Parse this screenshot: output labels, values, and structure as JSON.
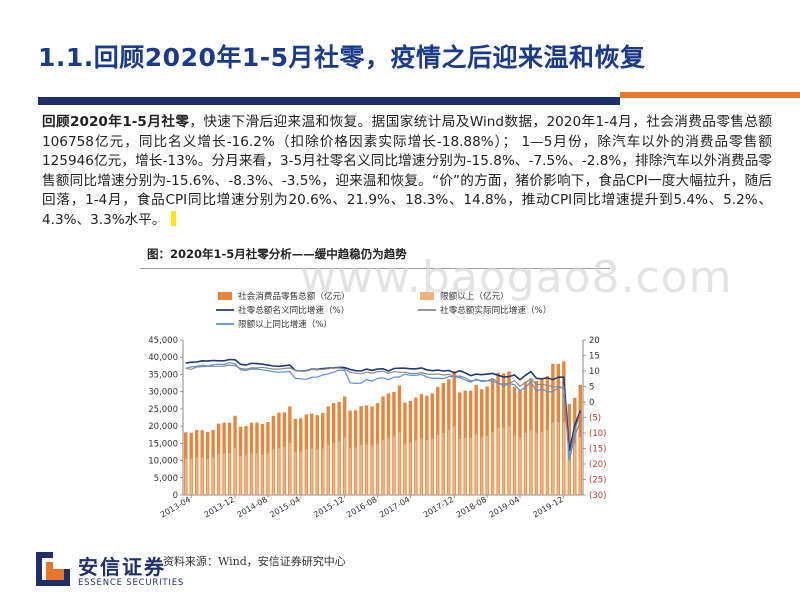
{
  "header": {
    "title": "1.1.回顾2020年1-5月社零，疫情之后迎来温和恢复"
  },
  "summary": {
    "lead": "回顾2020年1-5月社零",
    "body": "，快速下滑后迎来温和恢复。据国家统计局及Wind数据，2020年1-4月，社会消费品零售总额106758亿元，同比名义增长-16.2%（扣除价格因素实际增长-18.88%）； 1—5月份，除汽车以外的消费品零售额125946亿元，增长-13%。分月来看，3-5月社零名义同比增速分别为-15.8%、-7.5%、-2.8%，排除汽车以外消费品零售额同比增速分别为-15.6%、-8.3%、-3.5%，迎来温和恢复。“价”的方面，猪价影响下，食品CPI一度大幅拉升，随后回落，1-4月，食品CPI同比增速分别为20.6%、21.9%、18.3%、14.8%，推动CPI同比增速提升到5.4%、5.2%、4.3%、3.3%水平。"
  },
  "figure": {
    "title": "图：2020年1-5月社零分析——缓中趋稳仍为趋势",
    "source": "资料来源：Wind，安信证券研究中心",
    "watermark": "www.baogao8.com"
  },
  "brand": {
    "name_cn": "安信证券",
    "name_en": "ESSENCE SECURITIES",
    "navy": "#1f2f6b",
    "orange": "#e9762a"
  },
  "chart_data": {
    "type": "bar+line",
    "legend": {
      "placement": "top",
      "entries": [
        "社会消费品零售总额（亿元）",
        "限额以上（亿元）",
        "社零总额名义同比增速（%）",
        "社零总额实际同比增速（%）",
        "限额以上同比增速（%）"
      ]
    },
    "x_tick_labels": [
      "2013-04",
      "2013-12",
      "2014-08",
      "2015-04",
      "2015-12",
      "2016-08",
      "2017-04",
      "2017-12",
      "2018-08",
      "2019-04",
      "2019-12"
    ],
    "y_left": {
      "min": 0,
      "max": 45000,
      "ticks": [
        "0",
        "5,000",
        "10,000",
        "15,000",
        "20,000",
        "25,000",
        "30,000",
        "35,000",
        "40,000",
        "45,000"
      ]
    },
    "y_right": {
      "min": -30,
      "max": 20,
      "ticks": [
        "20",
        "15",
        "10",
        "5",
        "0",
        "(5)",
        "(10)",
        "(15)",
        "(20)",
        "(25)",
        "(30)"
      ]
    },
    "months": [
      "2013-03",
      "2013-04",
      "2013-05",
      "2013-06",
      "2013-07",
      "2013-08",
      "2013-09",
      "2013-10",
      "2013-11",
      "2013-12",
      "2014-03",
      "2014-04",
      "2014-05",
      "2014-06",
      "2014-07",
      "2014-08",
      "2014-09",
      "2014-10",
      "2014-11",
      "2014-12",
      "2015-03",
      "2015-04",
      "2015-05",
      "2015-06",
      "2015-07",
      "2015-08",
      "2015-09",
      "2015-10",
      "2015-11",
      "2015-12",
      "2016-03",
      "2016-04",
      "2016-05",
      "2016-06",
      "2016-07",
      "2016-08",
      "2016-09",
      "2016-10",
      "2016-11",
      "2016-12",
      "2017-03",
      "2017-04",
      "2017-05",
      "2017-06",
      "2017-07",
      "2017-08",
      "2017-09",
      "2017-10",
      "2017-11",
      "2017-12",
      "2018-03",
      "2018-04",
      "2018-05",
      "2018-06",
      "2018-07",
      "2018-08",
      "2018-09",
      "2018-10",
      "2018-11",
      "2018-12",
      "2019-03",
      "2019-04",
      "2019-05",
      "2019-06",
      "2019-07",
      "2019-08",
      "2019-09",
      "2019-10",
      "2019-11",
      "2019-12",
      "2020-03",
      "2020-04",
      "2020-05"
    ],
    "series": [
      {
        "name": "社会消费品零售总额（亿元）",
        "kind": "bar",
        "color": "#e9853a",
        "values": [
          18200,
          18100,
          18900,
          18800,
          18300,
          18900,
          20700,
          21000,
          21000,
          23000,
          19800,
          20000,
          21000,
          21000,
          20600,
          21200,
          23000,
          23900,
          24000,
          25700,
          22100,
          22300,
          23400,
          23600,
          23200,
          23800,
          25700,
          26700,
          27000,
          28600,
          24500,
          24600,
          25800,
          26000,
          25700,
          26700,
          28600,
          29500,
          29900,
          31800,
          26800,
          27300,
          28300,
          29300,
          28800,
          29500,
          31400,
          32500,
          33600,
          35900,
          29800,
          30300,
          30300,
          32000,
          30700,
          31500,
          33600,
          35500,
          35300,
          35900,
          31400,
          30600,
          32900,
          33900,
          33100,
          33900,
          34500,
          38100,
          38100,
          38800,
          26400,
          28200,
          31970
        ]
      },
      {
        "name": "限额以上（亿元）",
        "kind": "bar",
        "color": "#f2b27b",
        "values": [
          10500,
          10400,
          10900,
          10900,
          10500,
          10900,
          11900,
          12100,
          12200,
          13700,
          11300,
          11500,
          12000,
          12100,
          11800,
          12100,
          13300,
          13600,
          14000,
          15100,
          12500,
          12700,
          13300,
          13500,
          13200,
          13500,
          14600,
          15200,
          15600,
          16700,
          13700,
          13800,
          14500,
          14700,
          14300,
          14900,
          16000,
          16600,
          17000,
          18200,
          14900,
          15200,
          15800,
          16400,
          15900,
          16300,
          17500,
          18000,
          18900,
          20000,
          16300,
          16600,
          16600,
          17600,
          16700,
          17100,
          18300,
          19600,
          19500,
          19900,
          17300,
          16700,
          18100,
          18700,
          18000,
          18300,
          18800,
          21100,
          21100,
          21200,
          13500,
          14900,
          16800
        ]
      },
      {
        "name": "社零总额名义同比增速（%）",
        "kind": "line",
        "axis": "right",
        "color": "#1f3a7a",
        "values": [
          12.6,
          12.8,
          12.9,
          13.3,
          13.2,
          13.4,
          13.3,
          13.3,
          13.7,
          13.6,
          12.2,
          11.9,
          12.5,
          12.4,
          12.2,
          11.9,
          11.6,
          11.5,
          11.7,
          11.9,
          10.2,
          10.0,
          10.1,
          10.6,
          10.5,
          10.8,
          10.9,
          11.0,
          11.2,
          11.1,
          10.5,
          10.1,
          10.0,
          10.6,
          10.2,
          10.6,
          10.7,
          10.0,
          10.8,
          10.9,
          10.9,
          10.7,
          10.7,
          11.0,
          10.4,
          10.1,
          10.3,
          10.0,
          10.2,
          9.4,
          10.1,
          9.4,
          8.5,
          9.0,
          8.8,
          9.0,
          9.2,
          8.6,
          8.1,
          8.2,
          8.7,
          7.2,
          8.6,
          9.8,
          7.6,
          7.5,
          7.8,
          7.2,
          8.0,
          8.0,
          -15.8,
          -7.5,
          -2.8
        ]
      },
      {
        "name": "社零总额实际同比增速（%）",
        "kind": "line",
        "axis": "right",
        "color": "#8a8a8a",
        "values": [
          10.9,
          10.5,
          11.3,
          11.4,
          11.5,
          11.5,
          11.5,
          11.6,
          11.9,
          11.7,
          10.8,
          10.6,
          11.0,
          11.0,
          11.2,
          10.9,
          10.6,
          10.6,
          10.8,
          11.0,
          10.2,
          10.0,
          10.0,
          10.5,
          10.4,
          10.5,
          10.7,
          10.9,
          11.0,
          10.6,
          9.6,
          9.3,
          9.1,
          9.6,
          9.3,
          9.8,
          9.9,
          9.3,
          9.8,
          9.6,
          9.6,
          9.2,
          9.2,
          9.5,
          9.0,
          8.9,
          9.1,
          8.7,
          8.9,
          8.3,
          8.4,
          7.8,
          6.8,
          7.1,
          6.9,
          6.8,
          6.8,
          5.9,
          5.8,
          6.0,
          6.9,
          5.1,
          6.4,
          7.4,
          5.7,
          5.6,
          5.4,
          4.9,
          4.9,
          4.6,
          -18.1,
          -9.1,
          -3.7
        ]
      },
      {
        "name": "限额以上同比增速（%）",
        "kind": "line",
        "axis": "right",
        "color": "#5b8fd6",
        "values": [
          10.9,
          11.3,
          11.5,
          11.8,
          11.6,
          12.0,
          12.2,
          12.1,
          12.7,
          12.3,
          10.4,
          10.2,
          10.6,
          10.6,
          10.4,
          10.1,
          9.8,
          9.6,
          9.7,
          9.8,
          7.6,
          7.5,
          7.3,
          8.0,
          8.0,
          8.7,
          9.1,
          9.6,
          10.3,
          10.2,
          6.2,
          6.0,
          6.1,
          7.3,
          6.7,
          7.6,
          7.8,
          7.2,
          8.0,
          8.1,
          9.0,
          8.6,
          8.6,
          8.9,
          8.1,
          7.6,
          7.7,
          7.5,
          8.2,
          8.2,
          7.9,
          7.1,
          6.4,
          7.4,
          6.6,
          6.8,
          7.6,
          6.4,
          5.1,
          5.9,
          5.6,
          3.6,
          4.7,
          6.5,
          3.6,
          4.2,
          3.4,
          3.2,
          4.8,
          4.4,
          -18.8,
          -11.0,
          -6.2
        ]
      }
    ]
  }
}
